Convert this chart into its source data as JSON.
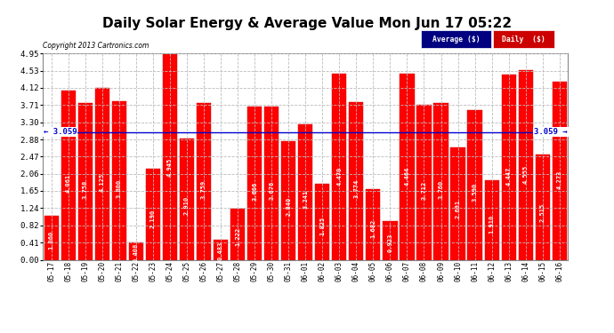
{
  "title": "Daily Solar Energy & Average Value Mon Jun 17 05:22",
  "copyright": "Copyright 2013 Cartronics.com",
  "categories": [
    "05-17",
    "05-18",
    "05-19",
    "05-20",
    "05-21",
    "05-22",
    "05-23",
    "05-24",
    "05-25",
    "05-26",
    "05-27",
    "05-28",
    "05-29",
    "05-30",
    "05-31",
    "06-01",
    "06-02",
    "06-03",
    "06-04",
    "06-05",
    "06-06",
    "06-07",
    "06-08",
    "06-09",
    "06-10",
    "06-11",
    "06-12",
    "06-13",
    "06-14",
    "06-15",
    "06-16"
  ],
  "values": [
    1.06,
    4.061,
    3.758,
    4.125,
    3.8,
    0.408,
    2.19,
    4.945,
    2.91,
    3.759,
    0.483,
    1.222,
    3.666,
    3.676,
    2.84,
    3.241,
    1.825,
    4.47,
    3.774,
    1.682,
    0.923,
    4.464,
    3.712,
    3.76,
    2.691,
    3.59,
    1.91,
    4.447,
    4.555,
    2.515,
    4.273
  ],
  "average": 3.059,
  "bar_color": "#ff0000",
  "avg_line_color": "#0000cd",
  "ylim": [
    0,
    4.95
  ],
  "yticks": [
    0.0,
    0.41,
    0.82,
    1.24,
    1.65,
    2.06,
    2.47,
    2.88,
    3.3,
    3.71,
    4.12,
    4.53,
    4.95
  ],
  "bg_color": "#ffffff",
  "grid_color": "#bbbbbb",
  "title_fontsize": 11,
  "legend_avg_color": "#000080",
  "legend_daily_color": "#cc0000",
  "avg_label": "Average ($)",
  "daily_label": "Daily  ($)"
}
